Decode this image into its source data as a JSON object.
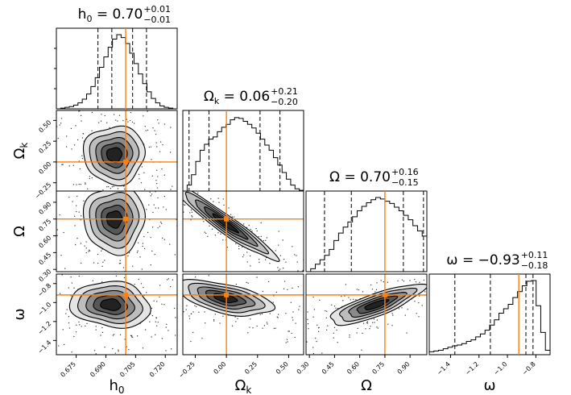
{
  "chart_data": {
    "type": "corner",
    "parameters": [
      {
        "key": "h0",
        "label": "h",
        "label_sub": "0",
        "title_value": "0.70",
        "err_plus": "+0.01",
        "err_minus": "−0.01",
        "range": [
          0.665,
          0.726
        ],
        "ticks": [
          "0.675",
          "0.690",
          "0.705",
          "0.720"
        ],
        "tick_values": [
          0.675,
          0.69,
          0.705,
          0.72
        ],
        "truth": 0.7,
        "quantiles": [
          0.686,
          0.693,
          0.7035,
          0.7105
        ]
      },
      {
        "key": "Omega_k",
        "label": "Ω",
        "label_sub": "k",
        "title_value": "0.06",
        "err_plus": "+0.21",
        "err_minus": "−0.20",
        "range": [
          -0.35,
          0.62
        ],
        "ticks": [
          "−0.25",
          "0.00",
          "0.25",
          "0.50"
        ],
        "tick_values": [
          -0.25,
          0.0,
          0.25,
          0.5
        ],
        "truth": 0.0,
        "quantiles": [
          -0.3,
          -0.14,
          0.27,
          0.43
        ]
      },
      {
        "key": "Omega",
        "label": "Ω",
        "label_sub": "",
        "title_value": "0.70",
        "err_plus": "+0.16",
        "err_minus": "−0.15",
        "range": [
          0.28,
          1.0
        ],
        "ticks": [
          "0.30",
          "0.45",
          "0.60",
          "0.75",
          "0.90"
        ],
        "tick_values": [
          0.3,
          0.45,
          0.6,
          0.75,
          0.9
        ],
        "truth": 0.75,
        "quantiles": [
          0.39,
          0.55,
          0.86,
          0.98
        ]
      },
      {
        "key": "w",
        "label": "ω",
        "label_sub": "",
        "title_value": "−0.93",
        "err_plus": "+0.11",
        "err_minus": "−0.18",
        "range": [
          -1.55,
          -0.7
        ],
        "ticks": [
          "−1.4",
          "−1.2",
          "−1.0",
          "−0.8"
        ],
        "tick_values": [
          -1.4,
          -1.2,
          -1.0,
          -0.8
        ],
        "truth": -0.92,
        "quantiles": [
          -1.37,
          -1.12,
          -0.87,
          -0.82
        ]
      }
    ],
    "histograms": {
      "h0": [
        0,
        1,
        2,
        3,
        5,
        8,
        13,
        20,
        30,
        42,
        56,
        70,
        83,
        94,
        100,
        96,
        88,
        75,
        61,
        47,
        34,
        23,
        14,
        8,
        4,
        2,
        1,
        0
      ],
      "Omega_k": [
        0,
        8,
        22,
        40,
        55,
        63,
        70,
        73,
        80,
        86,
        90,
        96,
        99,
        98,
        94,
        90,
        85,
        78,
        70,
        62,
        55,
        45,
        35,
        25,
        16,
        8,
        3,
        1
      ],
      "Omega": [
        0,
        4,
        10,
        16,
        22,
        30,
        42,
        52,
        60,
        67,
        74,
        82,
        88,
        93,
        97,
        100,
        98,
        95,
        92,
        87,
        82,
        76,
        70,
        62,
        55,
        48
      ],
      "w": [
        4,
        5,
        6,
        8,
        10,
        12,
        13,
        15,
        18,
        20,
        24,
        28,
        33,
        40,
        47,
        56,
        62,
        68,
        77,
        85,
        93,
        99,
        100,
        66,
        30,
        6
      ]
    },
    "truth_color": "#ff7f0e",
    "contour_color": "#000000"
  }
}
